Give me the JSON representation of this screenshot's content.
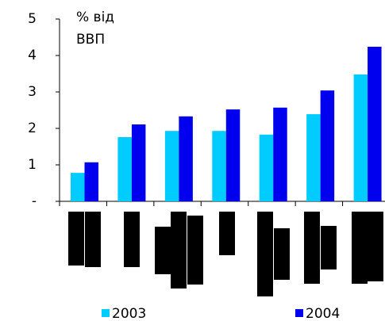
{
  "chart_data": {
    "type": "bar",
    "y_label": [
      "% від",
      "ВВП"
    ],
    "categories": [
      null,
      null,
      null,
      null,
      null,
      null,
      null
    ],
    "series": [
      {
        "name": "2003",
        "color": "#00ccff",
        "values": [
          0.78,
          1.76,
          1.93,
          1.93,
          1.83,
          2.39,
          3.48
        ]
      },
      {
        "name": "2004",
        "color": "#0000ee",
        "values": [
          1.07,
          2.11,
          2.33,
          2.52,
          2.57,
          3.04,
          4.24
        ]
      }
    ],
    "ylim": [
      0,
      5
    ],
    "yticks": [
      {
        "value": 0,
        "label": "-"
      },
      1,
      2,
      3,
      4,
      5
    ],
    "grid": false
  }
}
